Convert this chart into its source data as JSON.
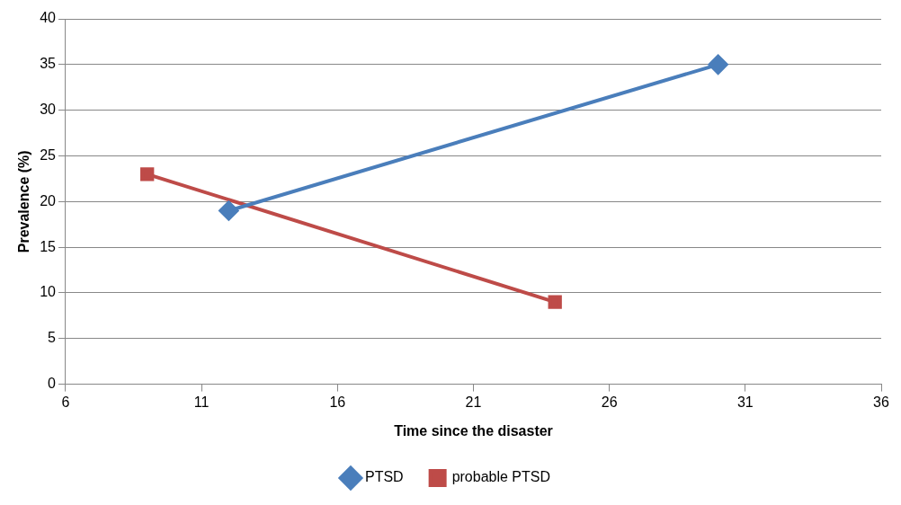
{
  "chart_data": {
    "type": "line",
    "xlabel": "Time since the disaster",
    "ylabel": "Prevalence (%)",
    "xlim": [
      6,
      36
    ],
    "xticks": [
      6,
      11,
      16,
      21,
      26,
      31,
      36
    ],
    "ylim": [
      0,
      40
    ],
    "yticks": [
      0,
      5,
      10,
      15,
      20,
      25,
      30,
      35,
      40
    ],
    "grid": "y",
    "legend": "bottom",
    "line_style": "solid",
    "series": [
      {
        "name": "PTSD",
        "color": "#4a7ebb",
        "x": [
          12,
          30
        ],
        "values": [
          19,
          35
        ],
        "marker": "diamond"
      },
      {
        "name": "probable PTSD",
        "color": "#be4b48",
        "x": [
          9,
          24
        ],
        "values": [
          23,
          9
        ],
        "marker": "square"
      }
    ]
  }
}
